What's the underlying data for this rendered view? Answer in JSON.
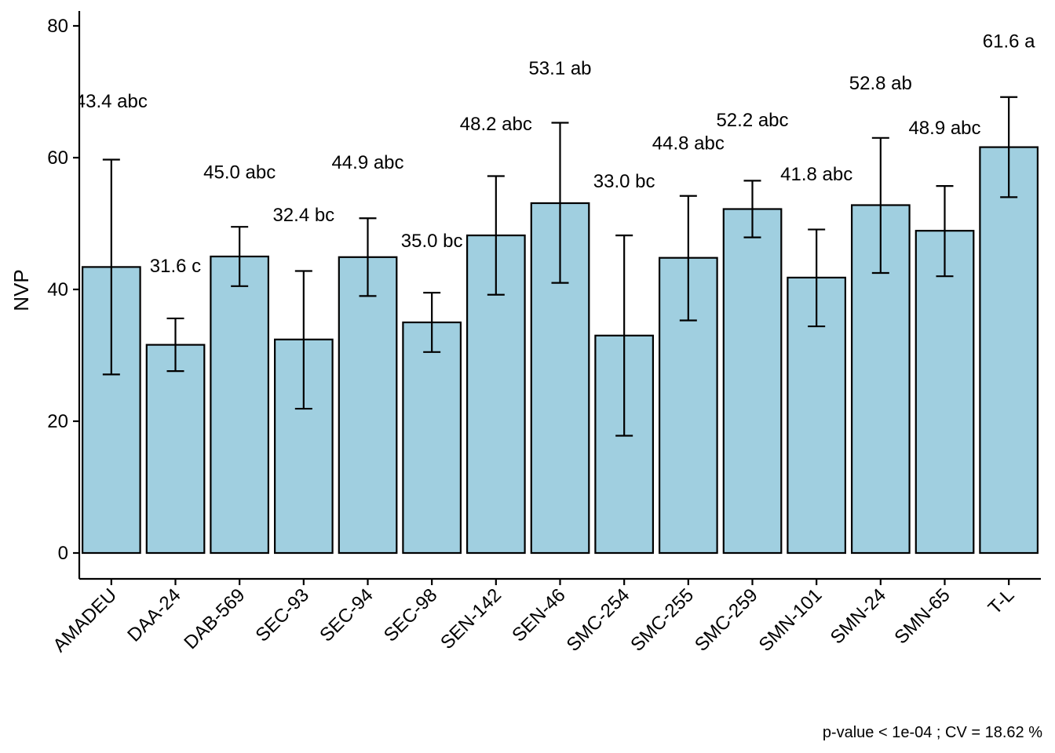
{
  "chart_data": {
    "type": "bar",
    "ylabel": "NVP",
    "xlabel": "",
    "ylim": [
      -4,
      82
    ],
    "yticks": [
      0,
      20,
      40,
      60,
      80
    ],
    "categories": [
      "AMADEU",
      "DAA-24",
      "DAB-569",
      "SEC-93",
      "SEC-94",
      "SEC-98",
      "SEN-142",
      "SEN-46",
      "SMC-254",
      "SMC-255",
      "SMC-259",
      "SMN-101",
      "SMN-24",
      "SMN-65",
      "T-L"
    ],
    "values": [
      43.4,
      31.6,
      45.0,
      32.4,
      44.9,
      35.0,
      48.2,
      53.1,
      33.0,
      44.8,
      52.2,
      41.8,
      52.8,
      48.9,
      61.6
    ],
    "error_lower": [
      27.1,
      27.6,
      40.5,
      21.9,
      39.0,
      30.5,
      39.2,
      41.0,
      17.8,
      35.3,
      47.9,
      34.4,
      42.5,
      42.0,
      54.0
    ],
    "error_upper": [
      59.7,
      35.6,
      49.5,
      42.8,
      50.8,
      39.5,
      57.2,
      65.3,
      48.2,
      54.2,
      56.5,
      49.1,
      63.0,
      55.7,
      69.2
    ],
    "labels": [
      "43.4 abc",
      "31.6 c",
      "45.0 abc",
      "32.4 bc",
      "44.9 abc",
      "35.0 bc",
      "48.2 abc",
      "53.1 ab",
      "33.0 bc",
      "44.8 abc",
      "52.2 abc",
      "41.8 abc",
      "52.8 ab",
      "48.9 abc",
      "61.6 a"
    ],
    "label_y": [
      68.6,
      43.6,
      57.8,
      51.3,
      59.3,
      47.4,
      65.1,
      73.6,
      56.4,
      62.2,
      65.7,
      57.5,
      71.3,
      64.5,
      77.7
    ],
    "bar_color": "#a0cfe0",
    "grid": false,
    "footnote": "p-value < 1e-04 ; CV =  18.62 %"
  }
}
